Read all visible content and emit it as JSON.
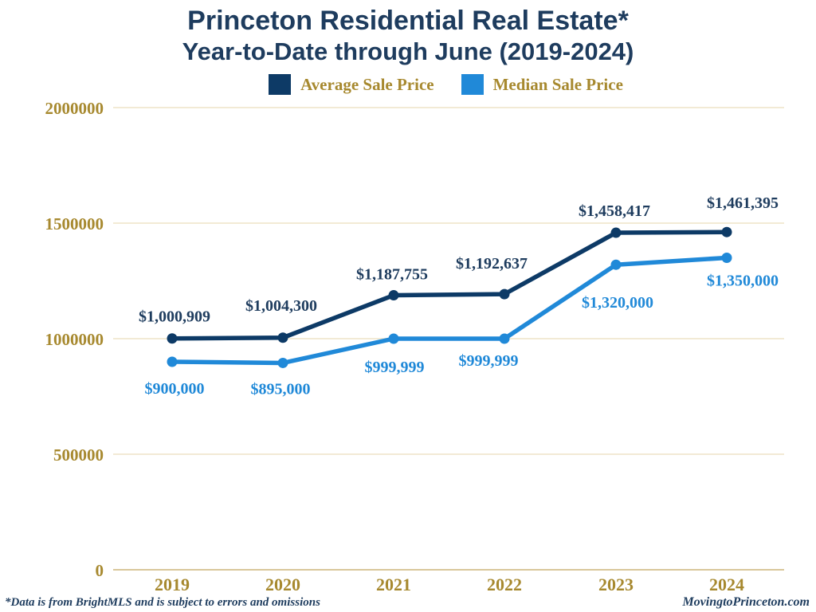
{
  "header": {
    "title": "Princeton Residential Real Estate*",
    "subtitle": "Year-to-Date through June (2019-2024)"
  },
  "legend": {
    "position": "top",
    "text_color": "#a7892f",
    "items": [
      {
        "label": "Average Sale Price",
        "color": "#0d3a66"
      },
      {
        "label": "Median Sale Price",
        "color": "#2089d8"
      }
    ]
  },
  "chart_data": {
    "type": "line",
    "title": "Princeton Residential Real Estate* Year-to-Date through June (2019-2024)",
    "categories": [
      "2019",
      "2020",
      "2021",
      "2022",
      "2023",
      "2024"
    ],
    "series": [
      {
        "name": "Average Sale Price",
        "color": "#0d3a66",
        "label_color": "#1e3c5e",
        "values": [
          1000909,
          1004300,
          1187755,
          1192637,
          1458417,
          1461395
        ],
        "point_labels": [
          "$1,000,909",
          "$1,004,300",
          "$1,187,755",
          "$1,192,637",
          "$1,458,417",
          "$1,461,395"
        ]
      },
      {
        "name": "Median Sale Price",
        "color": "#2089d8",
        "label_color": "#2089d8",
        "values": [
          900000,
          895000,
          999999,
          999999,
          1320000,
          1350000
        ],
        "point_labels": [
          "$900,000",
          "$895,000",
          "$999,999",
          "$999,999",
          "$1,320,000",
          "$1,350,000"
        ]
      }
    ],
    "xlabel": "",
    "ylabel": "",
    "ylim": [
      0,
      2000000
    ],
    "yticks": [
      0,
      500000,
      1000000,
      1500000,
      2000000
    ],
    "ytick_labels": [
      "0",
      "500000",
      "1000000",
      "1500000",
      "2000000"
    ],
    "grid": true,
    "legend_position": "top",
    "axis_text_color": "#a7892f",
    "gridline_color": "#f2ead5",
    "baseline_color": "#d9c79a"
  },
  "footer": {
    "disclaimer": "*Data is from BrightMLS and is subject to errors and omissions",
    "website": "MovingtoPrinceton.com"
  }
}
